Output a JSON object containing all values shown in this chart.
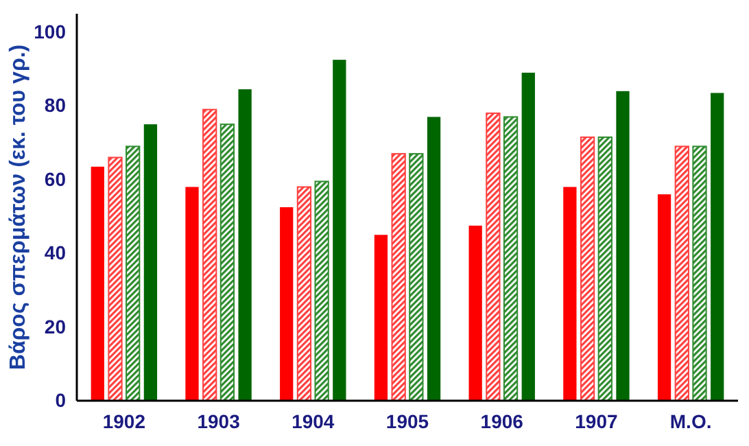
{
  "chart_data": {
    "type": "bar",
    "ylabel": "Βάρος σπερμάτων (εκ. του γρ.)",
    "categories": [
      "1902",
      "1903",
      "1904",
      "1905",
      "1906",
      "1907",
      "Μ.Ο."
    ],
    "series": [
      {
        "color": "#ff0000",
        "values": [
          63.5,
          58,
          52.5,
          45,
          47.5,
          58,
          56
        ]
      },
      {
        "color": "#ff4040",
        "values": [
          66,
          79,
          58,
          67,
          78,
          71.5,
          69
        ]
      },
      {
        "color": "#2e8b2e",
        "values": [
          69,
          75,
          59.5,
          67,
          77,
          71.5,
          69
        ]
      },
      {
        "color": "#006600",
        "values": [
          75,
          84.5,
          92.5,
          77,
          89,
          84,
          83.5
        ]
      }
    ],
    "ylim": [
      0,
      105
    ],
    "yticks": [
      0,
      20,
      40,
      60,
      80,
      100
    ]
  }
}
